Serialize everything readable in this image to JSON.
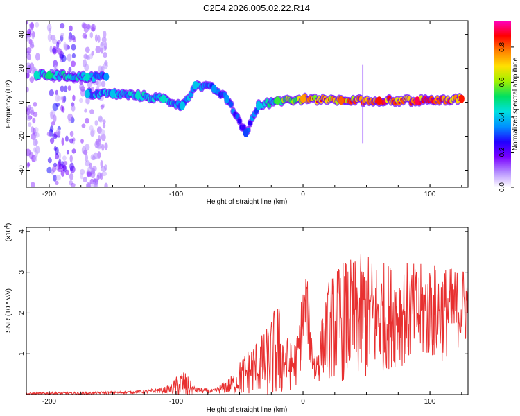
{
  "title": "C2E4.2026.005.02.22.R14",
  "chart_data": [
    {
      "type": "heatmap",
      "xlabel": "Height of straight line (km)",
      "ylabel": "Frequency (Hz)",
      "xlim": [
        -218,
        130
      ],
      "ylim": [
        -50,
        48
      ],
      "xticks": [
        "-200",
        "-100",
        "0",
        "100"
      ],
      "yticks": [
        "40",
        "20",
        "0",
        "-20",
        "-40"
      ],
      "colorbar": {
        "label": "Normalized spectral amplitude",
        "ticks": [
          "0.0",
          "0.2",
          "0.4",
          "0.6",
          "0.8"
        ],
        "range": [
          0,
          0.95
        ],
        "colors": [
          "#ffffff",
          "#b48cff",
          "#7a00ff",
          "#2000ff",
          "#0090ff",
          "#00e0e0",
          "#00e060",
          "#a0f000",
          "#ffe000",
          "#ff8000",
          "#ff0000",
          "#ff00c0"
        ]
      },
      "ridge": [
        {
          "x": -210,
          "f": 16,
          "a": 0.45
        },
        {
          "x": -200,
          "f": 16,
          "a": 0.5
        },
        {
          "x": -170,
          "f": 15,
          "a": 0.45
        },
        {
          "x": -155,
          "f": 15,
          "a": 0.35
        },
        {
          "x": -170,
          "f": 5,
          "a": 0.4
        },
        {
          "x": -150,
          "f": 5,
          "a": 0.4
        },
        {
          "x": -130,
          "f": 4,
          "a": 0.45
        },
        {
          "x": -110,
          "f": 2,
          "a": 0.45
        },
        {
          "x": -95,
          "f": -2,
          "a": 0.4
        },
        {
          "x": -85,
          "f": 10,
          "a": 0.4
        },
        {
          "x": -70,
          "f": 8,
          "a": 0.35
        },
        {
          "x": -60,
          "f": 2,
          "a": 0.35
        },
        {
          "x": -45,
          "f": -18,
          "a": 0.3
        },
        {
          "x": -35,
          "f": -2,
          "a": 0.4
        },
        {
          "x": -20,
          "f": 1,
          "a": 0.55
        },
        {
          "x": 0,
          "f": 2,
          "a": 0.75
        },
        {
          "x": 30,
          "f": 1,
          "a": 0.8
        },
        {
          "x": 60,
          "f": 1,
          "a": 0.85
        },
        {
          "x": 90,
          "f": 1,
          "a": 0.9
        },
        {
          "x": 125,
          "f": 2,
          "a": 0.85
        }
      ]
    },
    {
      "type": "line",
      "xlabel": "Height of straight line (km)",
      "ylabel": "SNR (10 * v/v)",
      "yscale_label": "(x10",
      "yscale_exp": "4",
      "yscale_close": ")",
      "xlim": [
        -218,
        130
      ],
      "ylim": [
        0,
        4.1
      ],
      "xticks": [
        "-200",
        "-100",
        "0",
        "100"
      ],
      "yticks": [
        "1",
        "2",
        "3",
        "4"
      ],
      "color": "#e83030",
      "series": [
        {
          "name": "SNR",
          "x": [
            -218,
            -200,
            -180,
            -160,
            -140,
            -120,
            -105,
            -95,
            -85,
            -70,
            -55,
            -48,
            -42,
            -36,
            -30,
            -25,
            -20,
            -15,
            -10,
            -5,
            0,
            3,
            6,
            10,
            15,
            20,
            30,
            40,
            50,
            60,
            70,
            80,
            90,
            100,
            110,
            120,
            130
          ],
          "mean": [
            0.02,
            0.03,
            0.03,
            0.04,
            0.05,
            0.08,
            0.12,
            0.25,
            0.1,
            0.08,
            0.25,
            0.45,
            0.6,
            0.7,
            0.75,
            0.9,
            1.1,
            0.8,
            0.7,
            0.8,
            1.8,
            2.2,
            1.2,
            0.6,
            1.2,
            1.6,
            1.8,
            1.85,
            1.9,
            1.9,
            1.95,
            2.0,
            2.0,
            2.05,
            2.0,
            2.1,
            2.2
          ],
          "amp": [
            0.02,
            0.03,
            0.03,
            0.03,
            0.03,
            0.05,
            0.1,
            0.4,
            0.08,
            0.05,
            0.25,
            0.5,
            0.6,
            0.7,
            0.8,
            1.0,
            1.3,
            0.8,
            0.6,
            0.6,
            1.0,
            0.8,
            0.6,
            0.5,
            0.7,
            1.2,
            1.5,
            1.5,
            1.6,
            1.4,
            1.3,
            1.3,
            1.2,
            1.2,
            1.2,
            1.0,
            1.0
          ]
        }
      ]
    }
  ]
}
